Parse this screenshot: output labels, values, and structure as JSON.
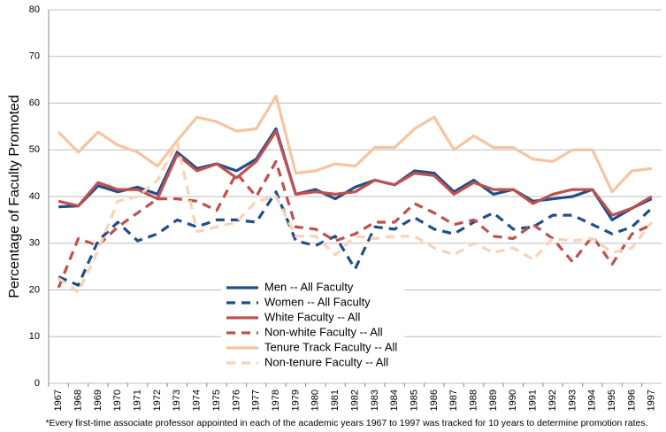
{
  "chart_data": {
    "type": "line",
    "ylabel": "Percentage of Faculty Promoted",
    "footnote": "*Every first-time associate professor appointed  in each of the academic years 1967 to 1997 was tracked for 10 years to determine promotion rates.",
    "categories": [
      "1967",
      "1968",
      "1969",
      "1970",
      "1971",
      "1972",
      "1973",
      "1974",
      "1975",
      "1976",
      "1977",
      "1978",
      "1979",
      "1980",
      "1981",
      "1982",
      "1983",
      "1984",
      "1985",
      "1986",
      "1987",
      "1988",
      "1989",
      "1990",
      "1991",
      "1992",
      "1993",
      "1994",
      "1995",
      "1996",
      "1997"
    ],
    "series": [
      {
        "name": "Men -- All Faculty",
        "color": "#1f4e8c",
        "dashed": false,
        "values": [
          37.8,
          38,
          42.3,
          41,
          42,
          40.5,
          49.5,
          46,
          47,
          45.5,
          48,
          54.5,
          40.5,
          41.5,
          39.5,
          42,
          43.5,
          42.5,
          45.5,
          45,
          41,
          43.5,
          40.5,
          41.5,
          39,
          39.5,
          40,
          41.5,
          35,
          37.5,
          39.5
        ]
      },
      {
        "name": "Women -- All Faculty",
        "color": "#1f4e8c",
        "dashed": true,
        "values": [
          22.8,
          21,
          30.5,
          34.5,
          30.5,
          32,
          35,
          33.5,
          35,
          35,
          34.5,
          41,
          30.5,
          29.5,
          31.5,
          24.5,
          33.5,
          33,
          35.5,
          33,
          32,
          34.5,
          36.5,
          33,
          33.5,
          36,
          36,
          34,
          32,
          33.5,
          37.5
        ]
      },
      {
        "name": "White Faculty -- All",
        "color": "#c0504d",
        "dashed": false,
        "values": [
          39,
          38,
          43,
          41.5,
          41.5,
          39.5,
          49,
          45.5,
          47,
          44,
          47.5,
          54,
          40.5,
          41,
          40.5,
          41,
          43.5,
          42.5,
          45,
          44.5,
          40.5,
          43,
          41.5,
          41.5,
          38.5,
          40.5,
          41.5,
          41.5,
          36,
          37.5,
          40
        ]
      },
      {
        "name": "Non-white Faculty -- All",
        "color": "#c0504d",
        "dashed": true,
        "values": [
          20.5,
          31,
          29.5,
          33.5,
          36.5,
          39.5,
          39.5,
          39,
          37,
          45,
          40,
          47.5,
          33.5,
          33,
          30.5,
          32,
          34.5,
          34.5,
          38.5,
          36.5,
          34,
          35,
          31.5,
          31,
          34,
          31,
          26,
          31.5,
          25.5,
          32,
          34
        ]
      },
      {
        "name": "Tenure Track Faculty -- All",
        "color": "#f7c4a0",
        "dashed": false,
        "values": [
          53.8,
          49.5,
          53.8,
          51,
          49.5,
          46.5,
          52,
          57,
          56,
          54,
          54.5,
          61.5,
          45,
          45.5,
          47,
          46.5,
          50.5,
          50.5,
          54.5,
          57,
          50,
          53,
          50.5,
          50.5,
          48,
          47.5,
          50,
          50,
          41,
          45.5,
          46
        ]
      },
      {
        "name": "Non-tenure Faculty -- All",
        "color": "#fad2b4",
        "dashed": true,
        "values": [
          22.5,
          19.5,
          28.5,
          39,
          40,
          43.5,
          51.5,
          32.5,
          33.5,
          34.5,
          39,
          40,
          31.5,
          31.5,
          27.5,
          31.5,
          31,
          31.5,
          31.5,
          29,
          27.5,
          30,
          28,
          29,
          26.5,
          31,
          30.5,
          31,
          28,
          29,
          34.5
        ]
      }
    ],
    "ylim": [
      0,
      80
    ],
    "yticks": [
      0,
      10,
      20,
      30,
      40,
      50,
      60,
      70,
      80
    ],
    "grid": true,
    "legend": "lower center"
  }
}
